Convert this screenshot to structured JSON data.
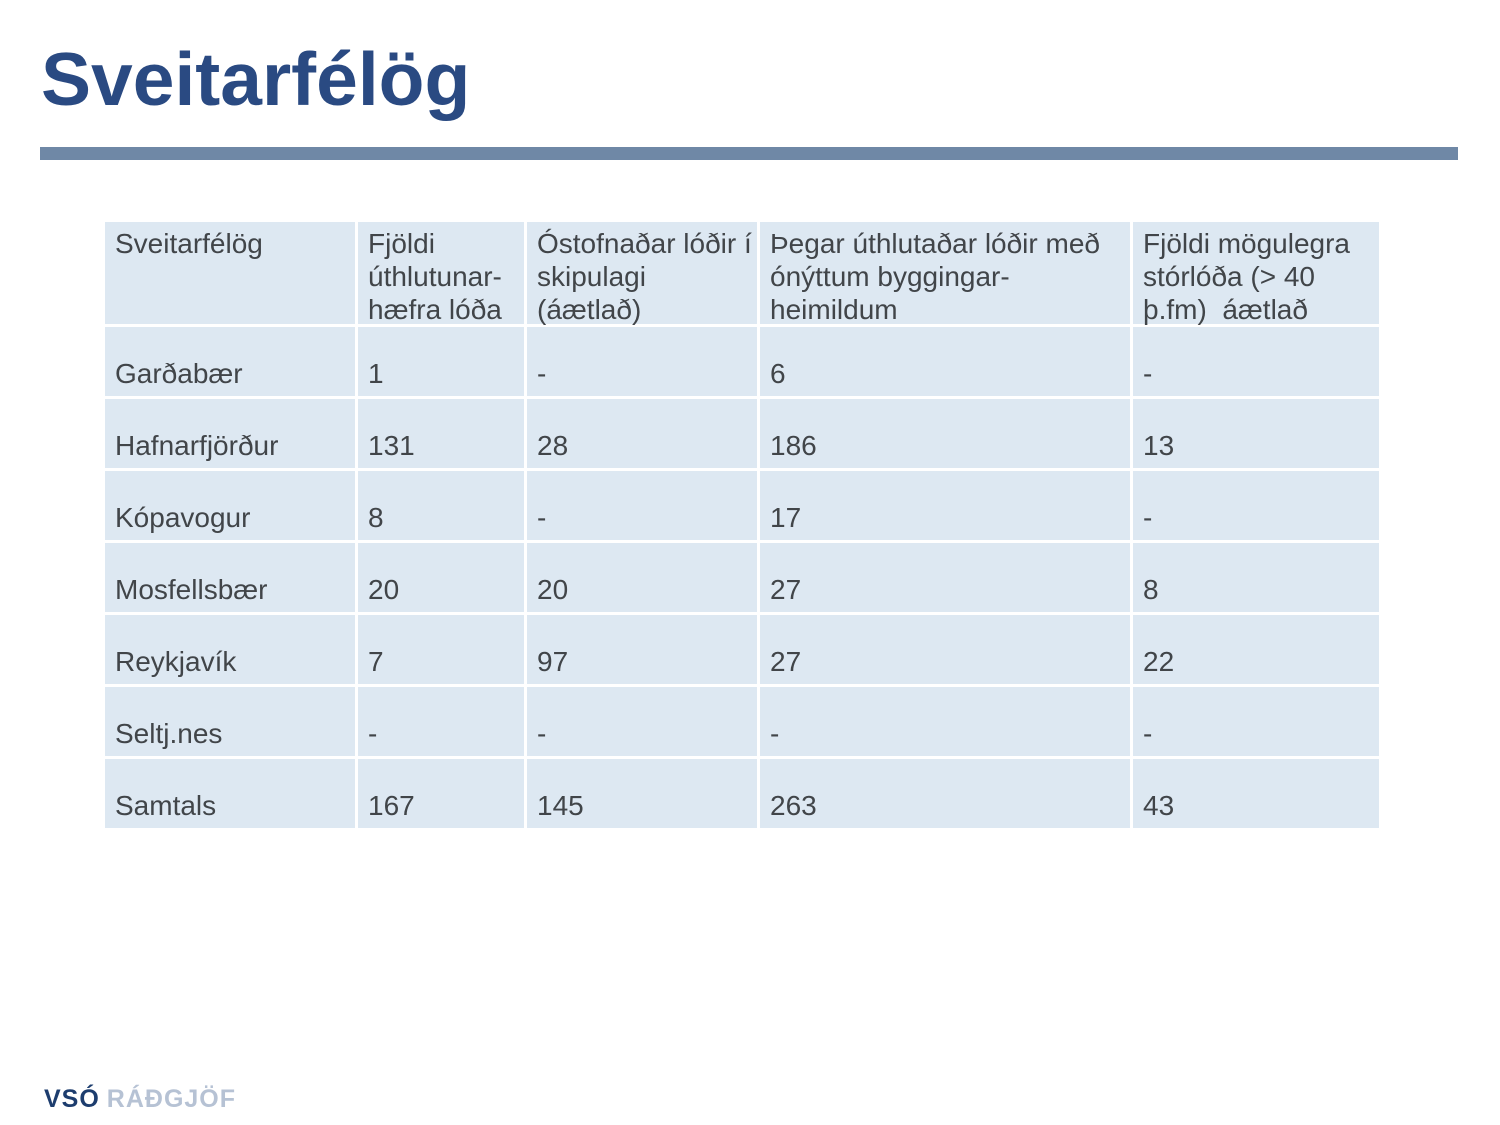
{
  "slide": {
    "title": "Sveitarfélög"
  },
  "colors": {
    "title": "#2a4a82",
    "accent_bar": "#6f88a6",
    "cell_bg": "#dde8f2",
    "table_text": "#414549",
    "logo_primary": "#1d3d6e",
    "logo_secondary": "#b6c2d4"
  },
  "table": {
    "headers": [
      {
        "label": "Sveitarfélög"
      },
      {
        "label": "Fjöldi\núthlutunar-\nhæfra lóða"
      },
      {
        "label": "Óstofnaðar lóðir í\nskipulagi (áætlað)"
      },
      {
        "label": "Þegar úthlutaðar lóðir með\nónýttum byggingar-\nheimildum"
      },
      {
        "label": "Fjöldi mögulegra\nstórlóða (> 40\nþ.fm)  áætlað"
      }
    ],
    "rows": [
      {
        "name": "Garðabær",
        "values": [
          "1",
          "-",
          "6",
          "-"
        ]
      },
      {
        "name": "Hafnarfjörður",
        "values": [
          "131",
          "28",
          "186",
          "13"
        ]
      },
      {
        "name": "Kópavogur",
        "values": [
          "8",
          "-",
          "17",
          "-"
        ]
      },
      {
        "name": "Mosfellsbær",
        "values": [
          "20",
          "20",
          "27",
          "8"
        ]
      },
      {
        "name": "Reykjavík",
        "values": [
          "7",
          "97",
          "27",
          "22"
        ]
      },
      {
        "name": "Seltj.nes",
        "values": [
          "-",
          "-",
          "-",
          "-"
        ]
      },
      {
        "name": "Samtals",
        "values": [
          "167",
          "145",
          "263",
          "43"
        ]
      }
    ]
  },
  "footer": {
    "logo_primary": "VSÓ",
    "logo_secondary": "RÁÐGJÖF"
  }
}
